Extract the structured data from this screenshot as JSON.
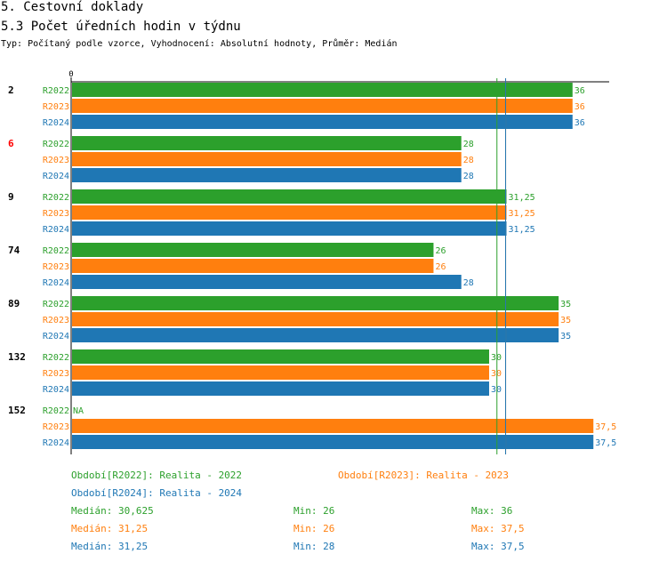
{
  "title": "5. Cestovní doklady",
  "subtitle": "5.3 Počet úředních hodin v týdnu",
  "info": "Typ: Počítaný podle vzorce, Vyhodnocení: Absolutní hodnoty, Průměr: Medián",
  "colors": {
    "R2022": "#2ca02c",
    "R2023": "#ff7f0e",
    "R2024": "#1f77b4",
    "highlight": "#ff0000"
  },
  "chart_data": {
    "type": "bar",
    "orientation": "horizontal",
    "x_tick_label": "0",
    "xlim": [
      0,
      38.7
    ],
    "series_names": [
      "R2022",
      "R2023",
      "R2024"
    ],
    "groups": [
      {
        "label": "2",
        "highlight": false,
        "values": [
          36,
          36,
          36
        ],
        "labels": [
          "36",
          "36",
          "36"
        ]
      },
      {
        "label": "6",
        "highlight": true,
        "values": [
          28,
          28,
          28
        ],
        "labels": [
          "28",
          "28",
          "28"
        ]
      },
      {
        "label": "9",
        "highlight": false,
        "values": [
          31.25,
          31.25,
          31.25
        ],
        "labels": [
          "31,25",
          "31,25",
          "31,25"
        ]
      },
      {
        "label": "74",
        "highlight": false,
        "values": [
          26,
          26,
          28
        ],
        "labels": [
          "26",
          "26",
          "28"
        ]
      },
      {
        "label": "89",
        "highlight": false,
        "values": [
          35,
          35,
          35
        ],
        "labels": [
          "35",
          "35",
          "35"
        ]
      },
      {
        "label": "132",
        "highlight": false,
        "values": [
          30,
          30,
          30
        ],
        "labels": [
          "30",
          "30",
          "30"
        ]
      },
      {
        "label": "152",
        "highlight": false,
        "values": [
          null,
          37.5,
          37.5
        ],
        "labels": [
          "NA",
          "37,5",
          "37,5"
        ]
      }
    ],
    "median_lines": [
      {
        "series": "R2022",
        "value": 30.625
      },
      {
        "series": "R2023",
        "value": 31.25
      },
      {
        "series": "R2024",
        "value": 31.25
      }
    ]
  },
  "legend": {
    "r2022": "Období[R2022]: Realita - 2022",
    "r2023": "Období[R2023]: Realita - 2023",
    "r2024": "Období[R2024]: Realita - 2024"
  },
  "stats": {
    "r2022": {
      "median": "Medián: 30,625",
      "min": "Min: 26",
      "max": "Max: 36"
    },
    "r2023": {
      "median": "Medián: 31,25",
      "min": "Min: 26",
      "max": "Max: 37,5"
    },
    "r2024": {
      "median": "Medián: 31,25",
      "min": "Min: 28",
      "max": "Max: 37,5"
    }
  }
}
